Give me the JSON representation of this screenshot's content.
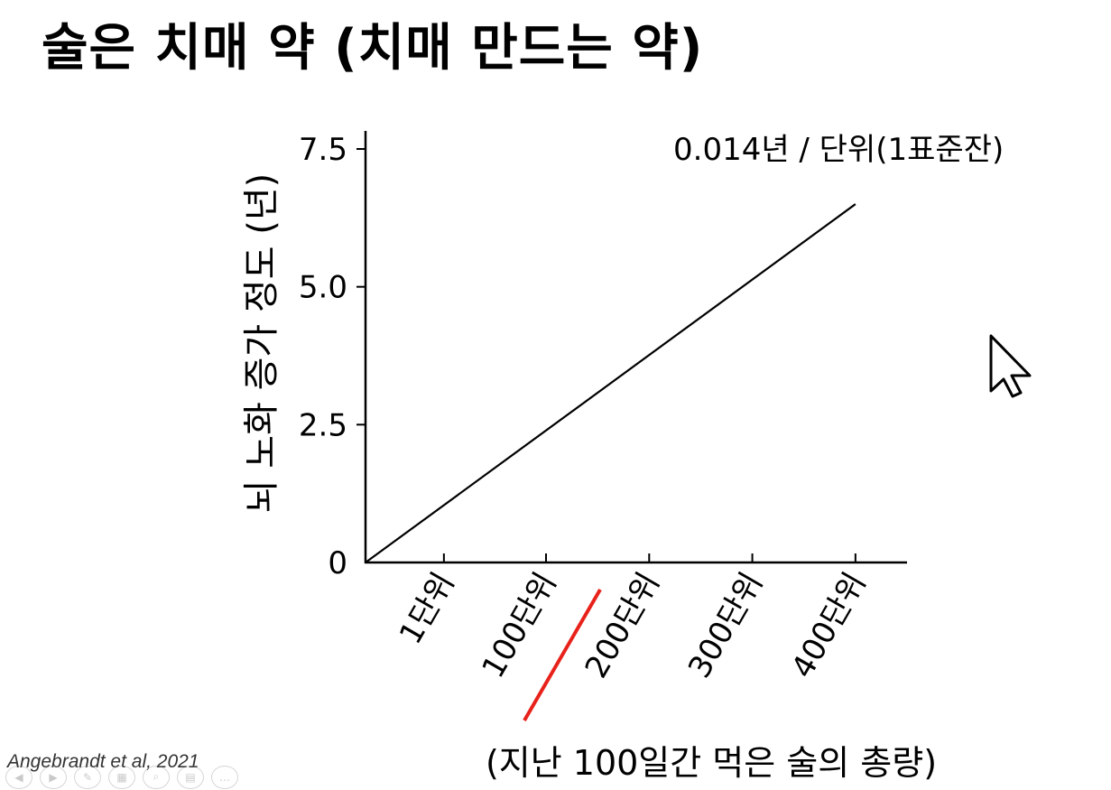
{
  "slide": {
    "title": "술은 치매 약 (치매 만드는 약)",
    "citation": "Angebrandt et al, 2021"
  },
  "toolbar": {
    "buttons": [
      "prev-icon",
      "next-icon",
      "pen-icon",
      "slides-icon",
      "zoom-icon",
      "subtitles-icon",
      "more-icon"
    ]
  },
  "colors": {
    "line": "#000000",
    "highlight": "#e8221b"
  },
  "chart_data": {
    "type": "line",
    "title": "",
    "annotation": "0.014년 / 단위(1표준잔)",
    "ylabel": "뇌 노화 증가 정도 (년)",
    "xlabel": "(지난 100일간 먹은 술의 총량)",
    "ylim": [
      0,
      7.5
    ],
    "yticks": [
      {
        "value": 0,
        "label": "0"
      },
      {
        "value": 2.5,
        "label": "2.5"
      },
      {
        "value": 5.0,
        "label": "5.0"
      },
      {
        "value": 7.5,
        "label": "7.5"
      }
    ],
    "xlim": [
      -75,
      450
    ],
    "xticks": [
      {
        "value": 1,
        "label": "1단위"
      },
      {
        "value": 100,
        "label": "100단위"
      },
      {
        "value": 200,
        "label": "200단위"
      },
      {
        "value": 300,
        "label": "300단위"
      },
      {
        "value": 400,
        "label": "400단위"
      }
    ],
    "series": [
      {
        "x": [
          -75,
          400
        ],
        "y": [
          0,
          6.5
        ]
      }
    ],
    "highlight": {
      "tick": "100단위",
      "color": "#e8221b"
    }
  },
  "cursor": "arrow-cursor-icon"
}
